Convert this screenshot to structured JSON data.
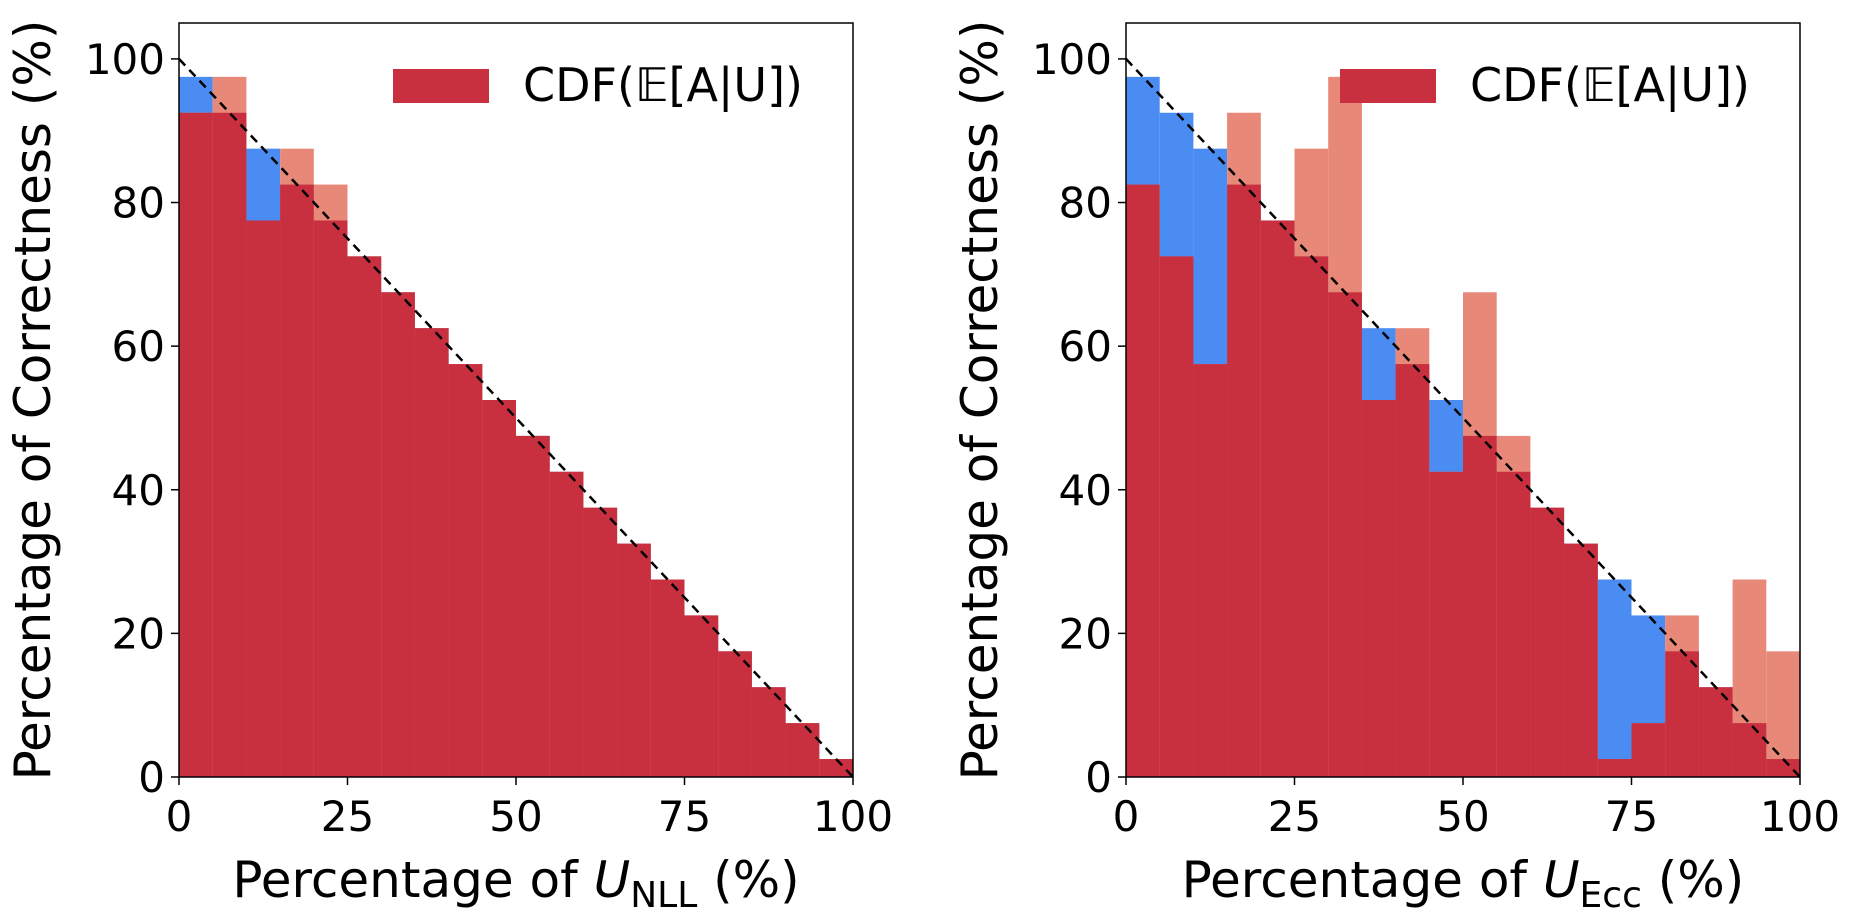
{
  "colors": {
    "cdf_fill": "#c83040",
    "under_fill": "#4a8cf2",
    "over_fill": "#e88878",
    "diagonal": "#000000"
  },
  "chart_data": [
    {
      "type": "bar",
      "bin_edges": [
        0,
        5,
        10,
        15,
        20,
        25,
        30,
        35,
        40,
        45,
        50,
        55,
        60,
        65,
        70,
        75,
        80,
        85,
        90,
        95,
        100
      ],
      "series": [
        {
          "name": "CDF(𝔼[A|U])",
          "values": [
            92.5,
            92.5,
            77.5,
            82.5,
            77.5,
            72.5,
            67.5,
            62.5,
            57.5,
            52.5,
            47.5,
            42.5,
            37.5,
            32.5,
            27.5,
            22.5,
            17.5,
            12.5,
            7.5,
            2.5
          ]
        },
        {
          "values": [
            97.5,
            92.5,
            87.5,
            82.5,
            77.5,
            72.5,
            67.5,
            62.5,
            57.5,
            52.5,
            47.5,
            42.5,
            37.5,
            32.5,
            27.5,
            22.5,
            17.5,
            12.5,
            7.5,
            2.5
          ]
        },
        {
          "values": [
            92.5,
            97.5,
            77.5,
            87.5,
            82.5,
            72.5,
            67.5,
            62.5,
            57.5,
            52.5,
            47.5,
            42.5,
            37.5,
            32.5,
            27.5,
            22.5,
            17.5,
            12.5,
            7.5,
            2.5
          ]
        }
      ],
      "reference_line": {
        "x": [
          0,
          100
        ],
        "y": [
          100,
          0
        ],
        "style": "dashed"
      },
      "xlabel": {
        "prefix": "Percentage of ",
        "var": "U",
        "sub": "NLL",
        "suffix": " (%)"
      },
      "ylabel": "Percentage of Correctness (%)",
      "xlim": [
        0,
        100
      ],
      "ylim": [
        0,
        105
      ],
      "xticks": [
        "0",
        "25",
        "50",
        "75",
        "100"
      ],
      "yticks": [
        "0",
        "20",
        "40",
        "60",
        "80",
        "100"
      ],
      "legend": {
        "label": "CDF(𝔼[A|U])",
        "placement": "top-right"
      },
      "grid": false
    },
    {
      "type": "bar",
      "bin_edges": [
        0,
        5,
        10,
        15,
        20,
        25,
        30,
        35,
        40,
        45,
        50,
        55,
        60,
        65,
        70,
        75,
        80,
        85,
        90,
        95,
        100
      ],
      "series": [
        {
          "name": "CDF(𝔼[A|U])",
          "values": [
            82.5,
            72.5,
            57.5,
            82.5,
            77.5,
            72.5,
            67.5,
            52.5,
            57.5,
            42.5,
            47.5,
            42.5,
            37.5,
            32.5,
            2.5,
            7.5,
            17.5,
            12.5,
            7.5,
            2.5
          ]
        },
        {
          "values": [
            97.5,
            92.5,
            87.5,
            82.5,
            77.5,
            72.5,
            67.5,
            62.5,
            57.5,
            52.5,
            47.5,
            42.5,
            37.5,
            32.5,
            27.5,
            22.5,
            17.5,
            12.5,
            7.5,
            2.5
          ]
        },
        {
          "values": [
            82.5,
            72.5,
            57.5,
            92.5,
            77.5,
            87.5,
            97.5,
            52.5,
            62.5,
            42.5,
            67.5,
            47.5,
            37.5,
            32.5,
            2.5,
            7.5,
            22.5,
            12.5,
            27.5,
            17.5
          ]
        }
      ],
      "reference_line": {
        "x": [
          0,
          100
        ],
        "y": [
          100,
          0
        ],
        "style": "dashed"
      },
      "xlabel": {
        "prefix": "Percentage of ",
        "var": "U",
        "sub": "Ecc",
        "suffix": " (%)"
      },
      "ylabel": "Percentage of Correctness (%)",
      "xlim": [
        0,
        100
      ],
      "ylim": [
        0,
        105
      ],
      "xticks": [
        "0",
        "25",
        "50",
        "75",
        "100"
      ],
      "yticks": [
        "0",
        "20",
        "40",
        "60",
        "80",
        "100"
      ],
      "legend": {
        "label": "CDF(𝔼[A|U])",
        "placement": "top-right"
      },
      "grid": false
    }
  ]
}
